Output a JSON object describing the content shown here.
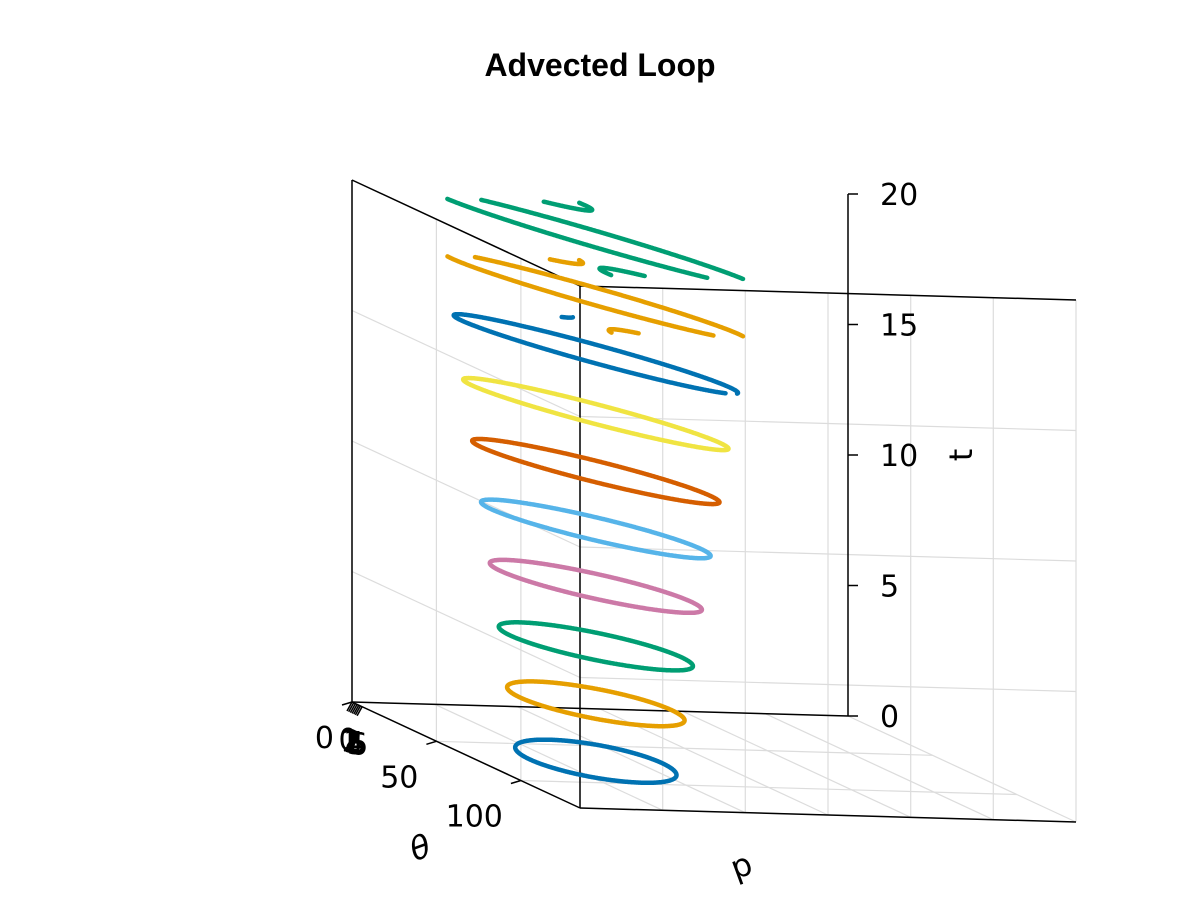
{
  "chart_data": {
    "type": "line3d",
    "title": "Advected Loop",
    "axes": {
      "theta": {
        "label": "θ",
        "range": [
          0,
          135
        ],
        "ticks": [
          0,
          50,
          100
        ],
        "tick_labels": [
          "0",
          "50",
          "100"
        ]
      },
      "p": {
        "label": "p",
        "range": [
          0,
          6
        ],
        "ticks": [
          0,
          1,
          2,
          3,
          4,
          5,
          6
        ],
        "tick_labels": [
          "0",
          "1",
          "2",
          "3",
          "4",
          "5",
          "6"
        ]
      },
      "t": {
        "label": "t",
        "range": [
          0,
          20
        ],
        "ticks": [
          0,
          5,
          10,
          15,
          20
        ],
        "tick_labels": [
          "0",
          "5",
          "10",
          "15",
          "20"
        ]
      }
    },
    "grid": true,
    "loop": {
      "theta_center": 68,
      "theta_radius": 38,
      "p_center": 1.5,
      "p_radius": 0.8,
      "advection_rate": 0.25
    },
    "series": [
      {
        "t": 0,
        "color": "#0072b2"
      },
      {
        "t": 2.2,
        "color": "#e69f00"
      },
      {
        "t": 4.4,
        "color": "#009e73"
      },
      {
        "t": 6.7,
        "color": "#cc79a7"
      },
      {
        "t": 8.9,
        "color": "#56b4e9"
      },
      {
        "t": 11.1,
        "color": "#d55e00"
      },
      {
        "t": 13.3,
        "color": "#f0e442"
      },
      {
        "t": 15.6,
        "color": "#0072b2"
      },
      {
        "t": 17.8,
        "color": "#e69f00"
      },
      {
        "t": 20,
        "color": "#009e73"
      }
    ]
  }
}
